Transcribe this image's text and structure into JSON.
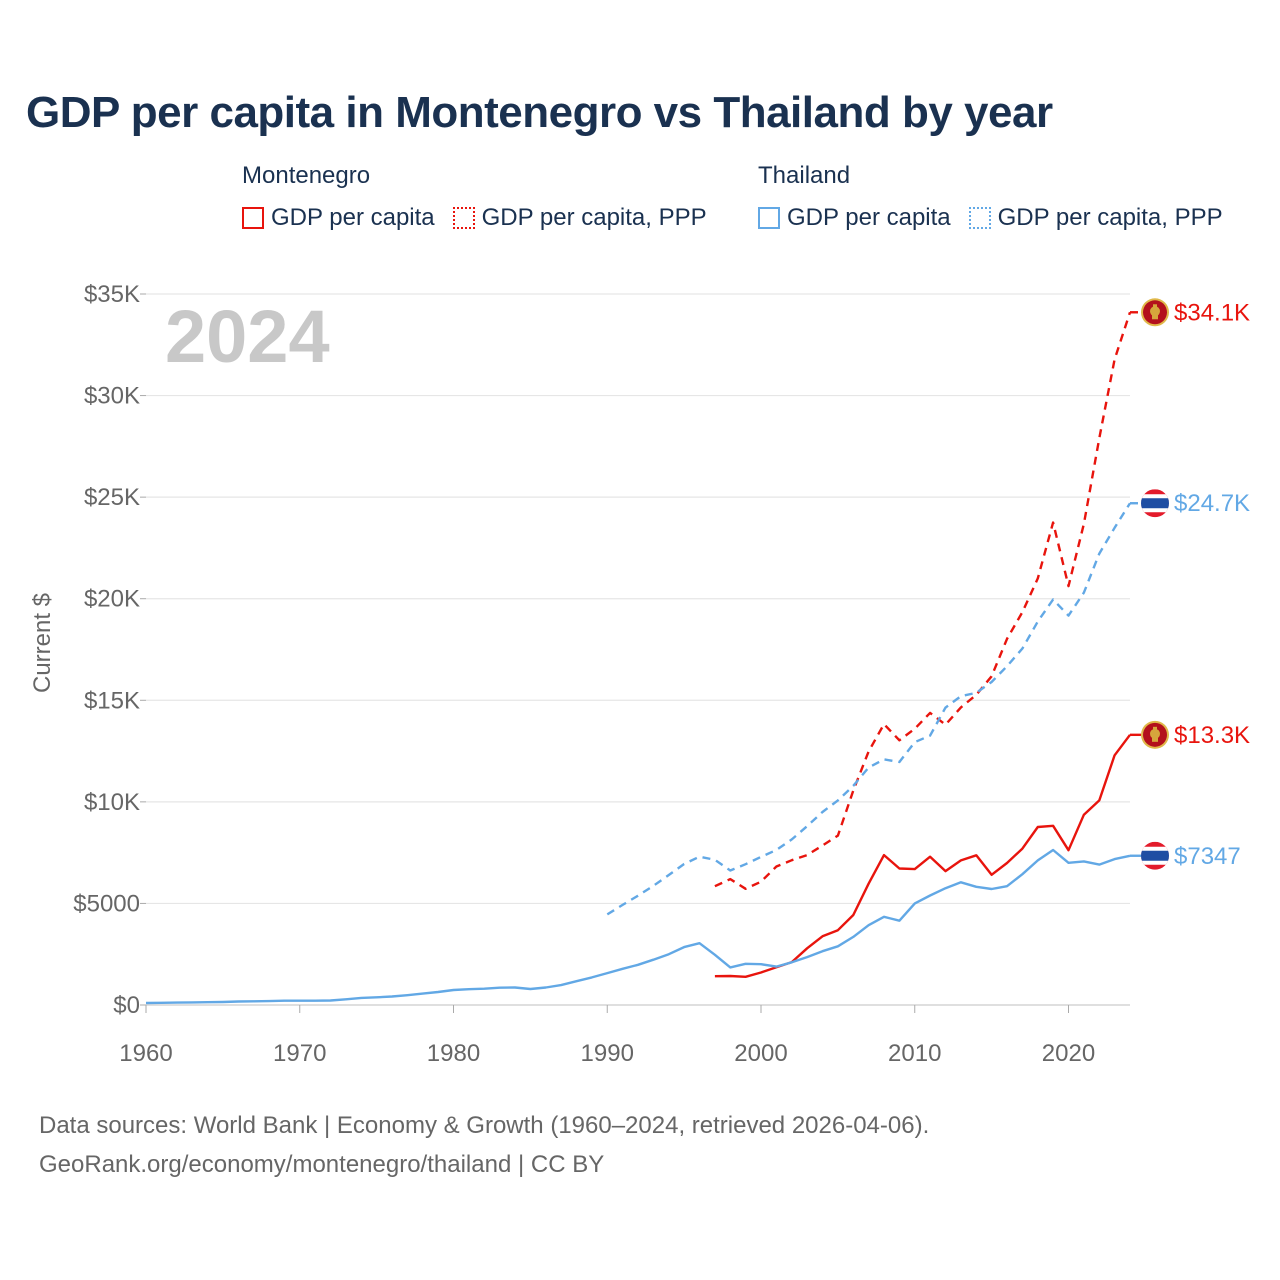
{
  "title": "GDP per capita in Montenegro vs Thailand by year",
  "legend": [
    {
      "group": "Montenegro",
      "color": "#e8140d",
      "items": [
        {
          "label": "GDP per capita",
          "style": "solid"
        },
        {
          "label": "GDP per capita, PPP",
          "style": "dotted"
        }
      ]
    },
    {
      "group": "Thailand",
      "color": "#62a8e5",
      "items": [
        {
          "label": "GDP per capita",
          "style": "solid"
        },
        {
          "label": "GDP per capita, PPP",
          "style": "dotted"
        }
      ]
    }
  ],
  "footer": {
    "source": "Data sources: World Bank | Economy & Growth (1960–2024, retrieved 2026-04-06).",
    "credit": "GeoRank.org/economy/montenegro/thailand | CC BY"
  },
  "chart_data": {
    "type": "line",
    "year_label": "2024",
    "ylabel": "Current $",
    "xlim": [
      1960,
      2024
    ],
    "ylim": [
      0,
      35000
    ],
    "x_ticks": [
      1960,
      1970,
      1980,
      1990,
      2000,
      2010,
      2020
    ],
    "x_tick_labels": [
      "1960",
      "1970",
      "1980",
      "1990",
      "2000",
      "2010",
      "2020"
    ],
    "y_ticks": [
      0,
      5000,
      10000,
      15000,
      20000,
      25000,
      30000,
      35000
    ],
    "y_tick_labels": [
      "$0",
      "$5000",
      "$10K",
      "$15K",
      "$20K",
      "$25K",
      "$30K",
      "$35K"
    ],
    "series": [
      {
        "name": "Montenegro GDP per capita",
        "country": "Montenegro",
        "flag": "montenegro-flag",
        "color": "#e8140d",
        "dash": "solid",
        "end_label": "$13.3K",
        "points": [
          [
            1997,
            1420
          ],
          [
            1998,
            1430
          ],
          [
            1999,
            1390
          ],
          [
            2000,
            1600
          ],
          [
            2001,
            1860
          ],
          [
            2002,
            2110
          ],
          [
            2003,
            2790
          ],
          [
            2004,
            3380
          ],
          [
            2005,
            3680
          ],
          [
            2006,
            4430
          ],
          [
            2007,
            5970
          ],
          [
            2008,
            7380
          ],
          [
            2009,
            6720
          ],
          [
            2010,
            6690
          ],
          [
            2011,
            7300
          ],
          [
            2012,
            6590
          ],
          [
            2013,
            7120
          ],
          [
            2014,
            7370
          ],
          [
            2015,
            6410
          ],
          [
            2016,
            6990
          ],
          [
            2017,
            7700
          ],
          [
            2018,
            8760
          ],
          [
            2019,
            8820
          ],
          [
            2020,
            7620
          ],
          [
            2021,
            9370
          ],
          [
            2022,
            10070
          ],
          [
            2023,
            12290
          ],
          [
            2024,
            13300
          ]
        ]
      },
      {
        "name": "Montenegro GDP per capita, PPP",
        "country": "Montenegro",
        "flag": "montenegro-flag",
        "color": "#e8140d",
        "dash": "dashed",
        "end_label": "$34.1K",
        "points": [
          [
            1997,
            5850
          ],
          [
            1998,
            6200
          ],
          [
            1999,
            5720
          ],
          [
            2000,
            6070
          ],
          [
            2001,
            6820
          ],
          [
            2002,
            7130
          ],
          [
            2003,
            7380
          ],
          [
            2004,
            7850
          ],
          [
            2005,
            8340
          ],
          [
            2006,
            10560
          ],
          [
            2007,
            12480
          ],
          [
            2008,
            13830
          ],
          [
            2009,
            13030
          ],
          [
            2010,
            13600
          ],
          [
            2011,
            14380
          ],
          [
            2012,
            13800
          ],
          [
            2013,
            14650
          ],
          [
            2014,
            15270
          ],
          [
            2015,
            16180
          ],
          [
            2016,
            18020
          ],
          [
            2017,
            19340
          ],
          [
            2018,
            21000
          ],
          [
            2019,
            23750
          ],
          [
            2020,
            20620
          ],
          [
            2021,
            23690
          ],
          [
            2022,
            27900
          ],
          [
            2023,
            31780
          ],
          [
            2024,
            34100
          ]
        ]
      },
      {
        "name": "Thailand GDP per capita",
        "country": "Thailand",
        "flag": "thailand-flag",
        "color": "#62a8e5",
        "dash": "solid",
        "end_label": "$7347",
        "points": [
          [
            1960,
            100
          ],
          [
            1961,
            110
          ],
          [
            1962,
            120
          ],
          [
            1963,
            130
          ],
          [
            1964,
            140
          ],
          [
            1965,
            150
          ],
          [
            1966,
            170
          ],
          [
            1967,
            180
          ],
          [
            1968,
            190
          ],
          [
            1969,
            210
          ],
          [
            1970,
            210
          ],
          [
            1971,
            210
          ],
          [
            1972,
            220
          ],
          [
            1973,
            280
          ],
          [
            1974,
            350
          ],
          [
            1975,
            380
          ],
          [
            1976,
            420
          ],
          [
            1977,
            480
          ],
          [
            1978,
            560
          ],
          [
            1979,
            640
          ],
          [
            1980,
            740
          ],
          [
            1981,
            780
          ],
          [
            1982,
            800
          ],
          [
            1983,
            850
          ],
          [
            1984,
            860
          ],
          [
            1985,
            790
          ],
          [
            1986,
            860
          ],
          [
            1987,
            980
          ],
          [
            1988,
            1170
          ],
          [
            1989,
            1360
          ],
          [
            1990,
            1570
          ],
          [
            1991,
            1780
          ],
          [
            1992,
            1980
          ],
          [
            1993,
            2230
          ],
          [
            1994,
            2500
          ],
          [
            1995,
            2850
          ],
          [
            1996,
            3040
          ],
          [
            1997,
            2470
          ],
          [
            1998,
            1850
          ],
          [
            1999,
            2030
          ],
          [
            2000,
            2010
          ],
          [
            2001,
            1890
          ],
          [
            2002,
            2100
          ],
          [
            2003,
            2360
          ],
          [
            2004,
            2650
          ],
          [
            2005,
            2890
          ],
          [
            2006,
            3350
          ],
          [
            2007,
            3930
          ],
          [
            2008,
            4340
          ],
          [
            2009,
            4150
          ],
          [
            2010,
            5000
          ],
          [
            2011,
            5390
          ],
          [
            2012,
            5750
          ],
          [
            2013,
            6040
          ],
          [
            2014,
            5820
          ],
          [
            2015,
            5710
          ],
          [
            2016,
            5850
          ],
          [
            2017,
            6440
          ],
          [
            2018,
            7120
          ],
          [
            2019,
            7630
          ],
          [
            2020,
            7000
          ],
          [
            2021,
            7070
          ],
          [
            2022,
            6910
          ],
          [
            2023,
            7180
          ],
          [
            2024,
            7347
          ]
        ]
      },
      {
        "name": "Thailand GDP per capita, PPP",
        "country": "Thailand",
        "flag": "thailand-flag",
        "color": "#62a8e5",
        "dash": "dashed",
        "end_label": "$24.7K",
        "points": [
          [
            1990,
            4460
          ],
          [
            1991,
            4930
          ],
          [
            1992,
            5380
          ],
          [
            1993,
            5870
          ],
          [
            1994,
            6400
          ],
          [
            1995,
            6940
          ],
          [
            1996,
            7300
          ],
          [
            1997,
            7150
          ],
          [
            1998,
            6620
          ],
          [
            1999,
            6930
          ],
          [
            2000,
            7290
          ],
          [
            2001,
            7630
          ],
          [
            2002,
            8150
          ],
          [
            2003,
            8800
          ],
          [
            2004,
            9500
          ],
          [
            2005,
            10070
          ],
          [
            2006,
            10790
          ],
          [
            2007,
            11690
          ],
          [
            2008,
            12090
          ],
          [
            2009,
            11960
          ],
          [
            2010,
            12940
          ],
          [
            2011,
            13260
          ],
          [
            2012,
            14640
          ],
          [
            2013,
            15200
          ],
          [
            2014,
            15370
          ],
          [
            2015,
            15900
          ],
          [
            2016,
            16680
          ],
          [
            2017,
            17550
          ],
          [
            2018,
            18880
          ],
          [
            2019,
            19960
          ],
          [
            2020,
            19170
          ],
          [
            2021,
            20300
          ],
          [
            2022,
            22220
          ],
          [
            2023,
            23490
          ],
          [
            2024,
            24700
          ]
        ]
      }
    ]
  }
}
